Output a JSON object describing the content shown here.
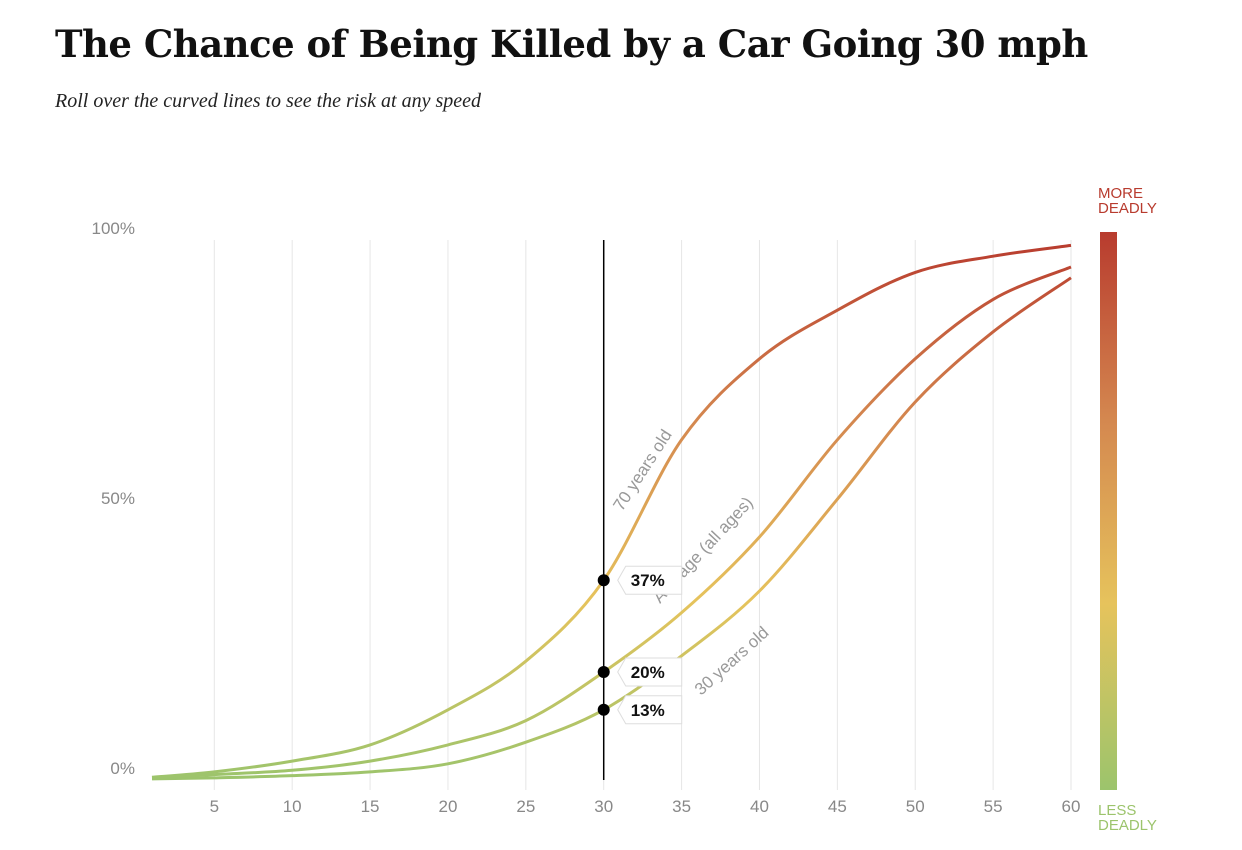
{
  "chart_data": {
    "type": "line",
    "title": "The Chance of Being Killed by a Car Going 30 mph",
    "subtitle": "Roll over the curved lines to see the risk at any speed",
    "x": [
      1,
      5,
      10,
      15,
      20,
      25,
      30,
      35,
      40,
      45,
      50,
      55,
      60
    ],
    "series": [
      {
        "name": "70 years old",
        "values": [
          0.5,
          1.5,
          3.5,
          6.5,
          13,
          22,
          37,
          63,
          78,
          87,
          94,
          97,
          99
        ]
      },
      {
        "name": "Average (all ages)",
        "values": [
          0.4,
          1,
          1.8,
          3.5,
          6.5,
          11,
          20,
          31,
          45,
          63,
          78,
          89,
          95
        ]
      },
      {
        "name": "30 years old",
        "values": [
          0.2,
          0.4,
          0.8,
          1.5,
          3,
          7,
          13,
          23,
          35,
          52,
          70,
          83,
          93
        ]
      }
    ],
    "colors": [
      "#9cc46c",
      "#e6c35c",
      "#d4874f",
      "#b83b2e"
    ],
    "xlim": [
      1,
      60
    ],
    "ylim": [
      0,
      100
    ],
    "xticks": [
      5,
      10,
      15,
      20,
      25,
      30,
      35,
      40,
      45,
      50,
      55,
      60
    ],
    "yticks": [
      {
        "value": 0,
        "label": "0%"
      },
      {
        "value": 50,
        "label": "50%"
      },
      {
        "value": 100,
        "label": "100%"
      }
    ],
    "grid": true,
    "marker": {
      "x": 30,
      "values": [
        37,
        20,
        13
      ],
      "value_labels": [
        "37%",
        "20%",
        "13%"
      ]
    },
    "colorbar_top": "MORE DEADLY",
    "colorbar_bottom": "LESS DEADLY"
  }
}
